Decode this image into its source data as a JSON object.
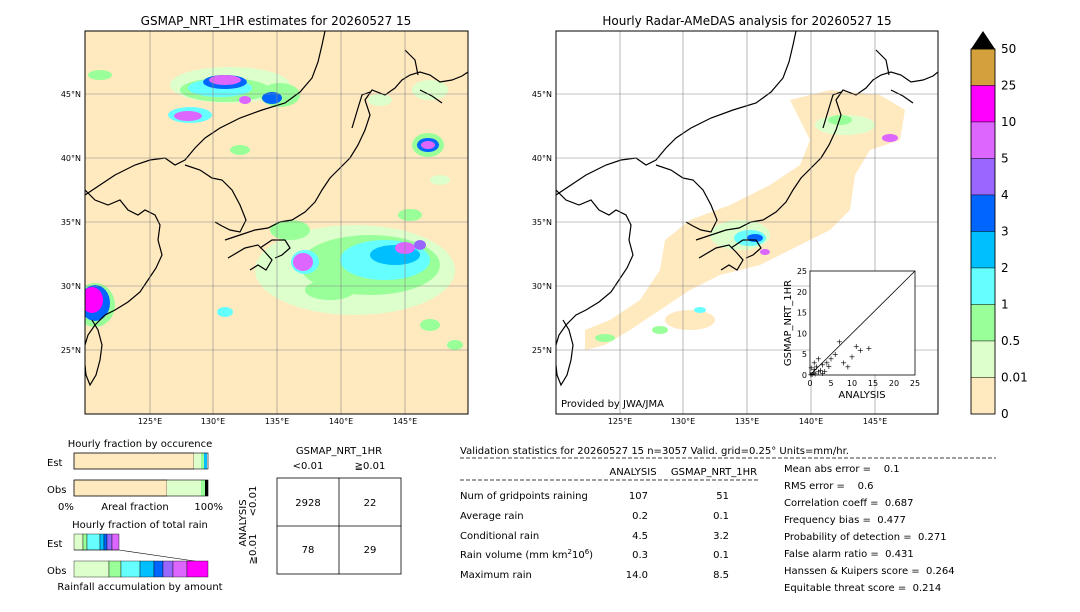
{
  "left_map": {
    "title": "GSMAP_NRT_1HR estimates for 20260527 15",
    "lat_labels": [
      "45°N",
      "40°N",
      "35°N",
      "30°N",
      "25°N"
    ],
    "lon_labels": [
      "125°E",
      "130°E",
      "135°E",
      "140°E",
      "145°E"
    ]
  },
  "right_map": {
    "title": "Hourly Radar-AMeDAS analysis for 20260527 15",
    "lat_labels": [
      "45°N",
      "40°N",
      "35°N",
      "30°N",
      "25°N"
    ],
    "lon_labels": [
      "125°E",
      "130°E",
      "135°E",
      "140°E",
      "145°E"
    ],
    "credit": "Provided by JWA/JMA"
  },
  "colorbar": {
    "levels": [
      "50",
      "25",
      "10",
      "5",
      "4",
      "3",
      "2",
      "1",
      "0.5",
      "0.01",
      "0"
    ],
    "colors": [
      "#d4a03c",
      "#ff00ff",
      "#dd66ff",
      "#9966ff",
      "#0066ff",
      "#00bfff",
      "#66ffff",
      "#99ff99",
      "#ddffcc",
      "#ffe9bf"
    ]
  },
  "chart_data": [
    {
      "type": "scatter",
      "xlabel": "ANALYSIS",
      "ylabel": "GSMAP_NRT_1HR",
      "xlim": [
        0,
        25
      ],
      "ylim": [
        0,
        25
      ],
      "ticks": [
        "0",
        "5",
        "10",
        "15",
        "20",
        "25"
      ],
      "points": [
        [
          0.2,
          0.1
        ],
        [
          0.5,
          0.3
        ],
        [
          0.8,
          0.6
        ],
        [
          1,
          1.5
        ],
        [
          1.2,
          0.4
        ],
        [
          1.5,
          2
        ],
        [
          2,
          0.8
        ],
        [
          2.5,
          1.2
        ],
        [
          3,
          2.5
        ],
        [
          3.5,
          1
        ],
        [
          4,
          3
        ],
        [
          4.5,
          2.2
        ],
        [
          5,
          4
        ],
        [
          6,
          5
        ],
        [
          7,
          8
        ],
        [
          8,
          3
        ],
        [
          9,
          2
        ],
        [
          10,
          4.5
        ],
        [
          11,
          7
        ],
        [
          12,
          6
        ],
        [
          14,
          6.5
        ],
        [
          1,
          3
        ],
        [
          2,
          4
        ],
        [
          0.3,
          1.8
        ],
        [
          3,
          0.5
        ]
      ]
    },
    {
      "type": "bar",
      "title": "Hourly fraction by occurence",
      "categories": [
        "Est",
        "Obs"
      ],
      "xlabels": [
        "0%",
        "Areal fraction",
        "100%"
      ]
    },
    {
      "type": "bar",
      "title": "Hourly fraction of total rain",
      "categories": [
        "Est",
        "Obs"
      ],
      "xlabel": "Rainfall accumulation by amount"
    }
  ],
  "contingency": {
    "title": "GSMAP_NRT_1HR",
    "col_labels": [
      "<0.01",
      "≧0.01"
    ],
    "row_labels": [
      "<0.01",
      "≧0.01"
    ],
    "side_label": "ANALYSIS",
    "cells": [
      "2928",
      "22",
      "78",
      "29"
    ]
  },
  "validation": {
    "header": "Validation statistics for 20260527 15  n=3057 Valid. grid=0.25° Units=mm/hr.",
    "col1": "ANALYSIS",
    "col2": "GSMAP_NRT_1HR",
    "rows": [
      {
        "label": "Num of gridpoints raining",
        "a": "107",
        "g": "51"
      },
      {
        "label": "Average rain",
        "a": "0.2",
        "g": "0.1"
      },
      {
        "label": "Conditional rain",
        "a": "4.5",
        "g": "3.2"
      },
      {
        "label": "Rain volume (mm km",
        "a": "0.3",
        "g": "0.1"
      },
      {
        "label": "Maximum rain",
        "a": "14.0",
        "g": "8.5"
      }
    ],
    "stats": [
      "Mean abs error =    0.1",
      "RMS error =    0.6",
      "Correlation coeff =  0.687",
      "Frequency bias =  0.477",
      "Probability of detection =  0.271",
      "False alarm ratio =  0.431",
      "Hanssen & Kuipers score =  0.264",
      "Equitable threat score =  0.214"
    ]
  }
}
